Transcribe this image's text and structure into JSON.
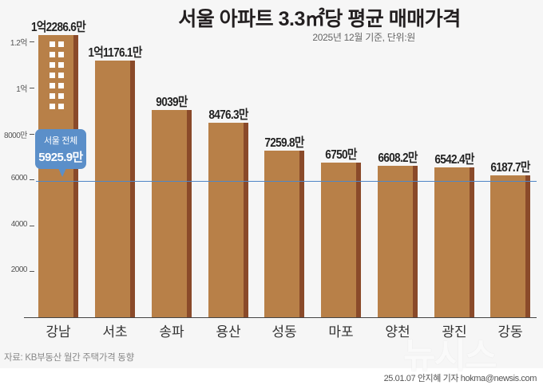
{
  "header": {
    "title": "서울 아파트 3.3㎡당 평균 매매가격",
    "subtitle": "2025년 12월 기준, 단위:원"
  },
  "y_axis": {
    "ticks": [
      {
        "label": "1.2억",
        "value": 12000
      },
      {
        "label": "1억",
        "value": 10000
      },
      {
        "label": "8000만",
        "value": 8000
      },
      {
        "label": "6000",
        "value": 6000
      },
      {
        "label": "4000",
        "value": 4000
      },
      {
        "label": "2000",
        "value": 2000
      }
    ]
  },
  "callout": {
    "label": "서울 전체",
    "value": "5925.9만"
  },
  "bars": [
    {
      "category": "강남",
      "label": "1억2286.6만"
    },
    {
      "category": "서초",
      "label": "1억1176.1만"
    },
    {
      "category": "송파",
      "label": "9039만"
    },
    {
      "category": "용산",
      "label": "8476.3만"
    },
    {
      "category": "성동",
      "label": "7259.8만"
    },
    {
      "category": "마포",
      "label": "6750만"
    },
    {
      "category": "양천",
      "label": "6608.2만"
    },
    {
      "category": "광진",
      "label": "6542.4만"
    },
    {
      "category": "강동",
      "label": "6187.7만"
    }
  ],
  "footer": {
    "source": "자료: KB부동산 월간 주택가격 동향",
    "credit": "25.01.07 안지혜 기자 hokma@newsis.com",
    "watermark": "뉴시스"
  },
  "colors": {
    "bar": "#b88048",
    "bar_side": "#8a4a2a",
    "average_line": "#4f86c6",
    "callout": "#5b8fc9",
    "background": "#f6f6f6"
  },
  "chart_data": {
    "type": "bar",
    "title": "서울 아파트 3.3㎡당 평균 매매가격",
    "subtitle": "2025년 12월 기준, 단위:원",
    "categories": [
      "강남",
      "서초",
      "송파",
      "용산",
      "성동",
      "마포",
      "양천",
      "광진",
      "강동"
    ],
    "values": [
      12286.6,
      11176.1,
      9039,
      8476.3,
      7259.8,
      6750,
      6608.2,
      6542.4,
      6187.7
    ],
    "value_unit": "만원",
    "data_labels": [
      "1억2286.6만",
      "1억1176.1만",
      "9039만",
      "8476.3만",
      "7259.8만",
      "6750만",
      "6608.2만",
      "6542.4만",
      "6187.7만"
    ],
    "reference_line": {
      "label": "서울 전체",
      "value": 5925.9,
      "display": "5925.9만"
    },
    "xlabel": "",
    "ylabel": "",
    "ylim": [
      0,
      12500
    ],
    "yticks": [
      2000,
      4000,
      6000,
      8000,
      10000,
      12000
    ],
    "ytick_labels": [
      "2000",
      "4000",
      "6000",
      "8000만",
      "1억",
      "1.2억"
    ],
    "grid": false,
    "legend": null,
    "source": "자료: KB부동산 월간 주택가격 동향"
  }
}
